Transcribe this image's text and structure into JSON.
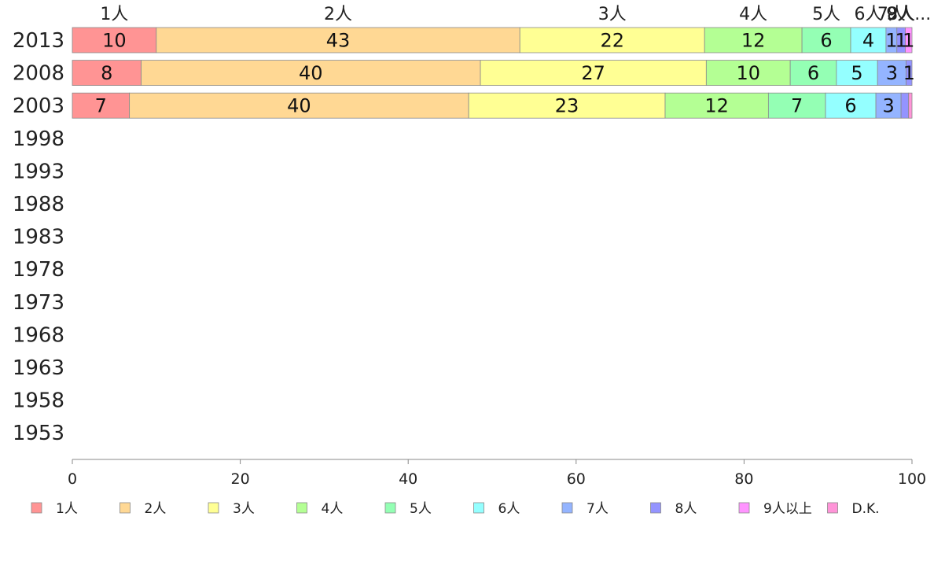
{
  "chart_data": {
    "type": "bar",
    "orientation": "horizontal",
    "stacked": true,
    "categories": [
      "2013",
      "2008",
      "2003",
      "1998",
      "1993",
      "1988",
      "1983",
      "1978",
      "1973",
      "1968",
      "1963",
      "1958",
      "1953"
    ],
    "series": [
      {
        "name": "1人",
        "color": "#ff9494",
        "values": [
          10,
          8.2,
          6.8,
          null,
          null,
          null,
          null,
          null,
          null,
          null,
          null,
          null,
          null
        ],
        "labels": [
          "10",
          "8",
          "7"
        ]
      },
      {
        "name": "2人",
        "color": "#ffd894",
        "values": [
          43.3,
          40.4,
          40.4,
          null,
          null,
          null,
          null,
          null,
          null,
          null,
          null,
          null,
          null
        ],
        "labels": [
          "43",
          "40",
          "40"
        ]
      },
      {
        "name": "3人",
        "color": "#ffff94",
        "values": [
          22,
          26.9,
          23.4,
          null,
          null,
          null,
          null,
          null,
          null,
          null,
          null,
          null,
          null
        ],
        "labels": [
          "22",
          "27",
          "23"
        ]
      },
      {
        "name": "4人",
        "color": "#b4ff94",
        "values": [
          11.6,
          10,
          12.3,
          null,
          null,
          null,
          null,
          null,
          null,
          null,
          null,
          null,
          null
        ],
        "labels": [
          "12",
          "10",
          "12"
        ]
      },
      {
        "name": "5人",
        "color": "#94ffb4",
        "values": [
          5.8,
          5.5,
          6.8,
          null,
          null,
          null,
          null,
          null,
          null,
          null,
          null,
          null,
          null
        ],
        "labels": [
          "6",
          "6",
          "7"
        ]
      },
      {
        "name": "6人",
        "color": "#94ffff",
        "values": [
          4.2,
          4.9,
          6,
          null,
          null,
          null,
          null,
          null,
          null,
          null,
          null,
          null,
          null
        ],
        "labels": [
          "4",
          "5",
          "6"
        ]
      },
      {
        "name": "7人",
        "color": "#94b4ff",
        "values": [
          1.3,
          3.4,
          3,
          null,
          null,
          null,
          null,
          null,
          null,
          null,
          null,
          null,
          null
        ],
        "labels": [
          "1",
          "3",
          "3"
        ]
      },
      {
        "name": "8人",
        "color": "#9494ff",
        "values": [
          1,
          0.7,
          0.9,
          null,
          null,
          null,
          null,
          null,
          null,
          null,
          null,
          null,
          null
        ],
        "labels": [
          "1",
          "1",
          ""
        ]
      },
      {
        "name": "9人以上",
        "color": "#ff94ff",
        "values": [
          0.8,
          0,
          0,
          null,
          null,
          null,
          null,
          null,
          null,
          null,
          null,
          null,
          null
        ],
        "labels": [
          "1",
          "",
          ""
        ]
      },
      {
        "name": "D.K.",
        "color": "#ff94d8",
        "values": [
          0,
          0,
          0.4,
          null,
          null,
          null,
          null,
          null,
          null,
          null,
          null,
          null,
          null
        ],
        "labels": [
          "",
          "",
          ""
        ]
      }
    ],
    "top_labels": [
      "1人",
      "2人",
      "3人",
      "4人",
      "5人",
      "6人",
      "7人",
      "8人",
      "9人...",
      "D.K."
    ],
    "xlim": [
      0,
      100
    ],
    "xticks": [
      "0",
      "20",
      "40",
      "60",
      "80",
      "100"
    ],
    "legend_position": "bottom",
    "grid": false
  }
}
